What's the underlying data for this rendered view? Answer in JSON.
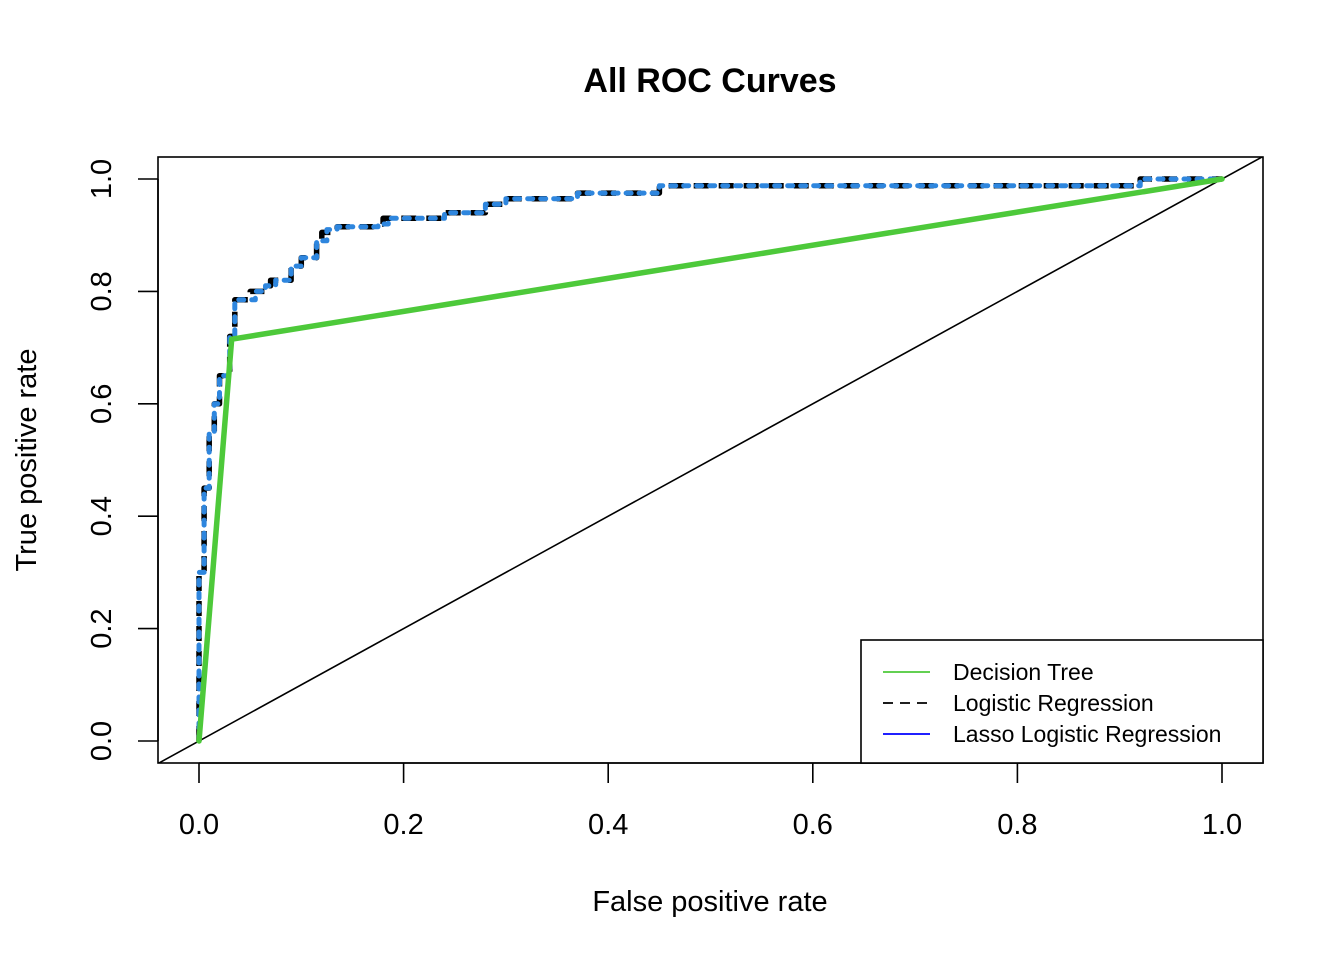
{
  "chart_data": {
    "type": "line",
    "title": "All ROC Curves",
    "xlabel": "False positive rate",
    "ylabel": "True positive rate",
    "xlim": [
      0,
      1
    ],
    "ylim": [
      0,
      1
    ],
    "xticks": [
      "0.0",
      "0.2",
      "0.4",
      "0.6",
      "0.8",
      "1.0"
    ],
    "yticks": [
      "0.0",
      "0.2",
      "0.4",
      "0.6",
      "0.8",
      "1.0"
    ],
    "legend_position": "bottom-right",
    "reference_line": {
      "x": [
        0,
        1
      ],
      "y": [
        0,
        1
      ],
      "color": "#000000"
    },
    "series": [
      {
        "name": "Logistic Regression",
        "legend_color": "#000000",
        "line_color": "#000000",
        "style": "dashed",
        "x": [
          0,
          0,
          0.005,
          0.005,
          0.01,
          0.01,
          0.015,
          0.015,
          0.02,
          0.02,
          0.03,
          0.03,
          0.035,
          0.035,
          0.05,
          0.05,
          0.065,
          0.065,
          0.07,
          0.07,
          0.09,
          0.09,
          0.1,
          0.1,
          0.115,
          0.115,
          0.12,
          0.12,
          0.135,
          0.135,
          0.17,
          0.17,
          0.18,
          0.18,
          0.24,
          0.24,
          0.28,
          0.28,
          0.3,
          0.3,
          0.37,
          0.37,
          0.45,
          0.45,
          0.92,
          0.92,
          1.0
        ],
        "y": [
          0,
          0.3,
          0.3,
          0.45,
          0.45,
          0.55,
          0.55,
          0.6,
          0.6,
          0.65,
          0.65,
          0.72,
          0.72,
          0.785,
          0.785,
          0.8,
          0.8,
          0.81,
          0.81,
          0.82,
          0.82,
          0.845,
          0.845,
          0.86,
          0.86,
          0.89,
          0.89,
          0.905,
          0.905,
          0.915,
          0.915,
          0.92,
          0.92,
          0.93,
          0.93,
          0.94,
          0.94,
          0.955,
          0.955,
          0.965,
          0.965,
          0.975,
          0.975,
          0.988,
          0.988,
          1.0,
          1.0
        ]
      },
      {
        "name": "Lasso Logistic Regression",
        "legend_color": "#0000ff",
        "line_color": "#2e86de",
        "style": "dotted",
        "x": [
          0,
          0,
          0.005,
          0.005,
          0.01,
          0.01,
          0.015,
          0.015,
          0.02,
          0.02,
          0.03,
          0.03,
          0.035,
          0.035,
          0.055,
          0.055,
          0.065,
          0.065,
          0.075,
          0.075,
          0.09,
          0.09,
          0.1,
          0.1,
          0.115,
          0.115,
          0.125,
          0.125,
          0.135,
          0.135,
          0.175,
          0.175,
          0.185,
          0.185,
          0.24,
          0.24,
          0.28,
          0.28,
          0.3,
          0.3,
          0.37,
          0.37,
          0.45,
          0.45,
          0.92,
          0.92,
          1.0
        ],
        "y": [
          0,
          0.3,
          0.3,
          0.45,
          0.45,
          0.55,
          0.55,
          0.6,
          0.6,
          0.65,
          0.65,
          0.72,
          0.72,
          0.785,
          0.785,
          0.8,
          0.8,
          0.81,
          0.81,
          0.82,
          0.82,
          0.845,
          0.845,
          0.86,
          0.86,
          0.89,
          0.89,
          0.91,
          0.91,
          0.915,
          0.915,
          0.92,
          0.92,
          0.93,
          0.93,
          0.94,
          0.94,
          0.955,
          0.955,
          0.965,
          0.965,
          0.975,
          0.975,
          0.988,
          0.988,
          1.0,
          1.0
        ]
      },
      {
        "name": "Decision Tree",
        "legend_color": "#4dc93a",
        "line_color": "#4dc93a",
        "style": "solid",
        "x": [
          0,
          0.032,
          1.0
        ],
        "y": [
          0,
          0.715,
          1.0
        ]
      }
    ]
  }
}
